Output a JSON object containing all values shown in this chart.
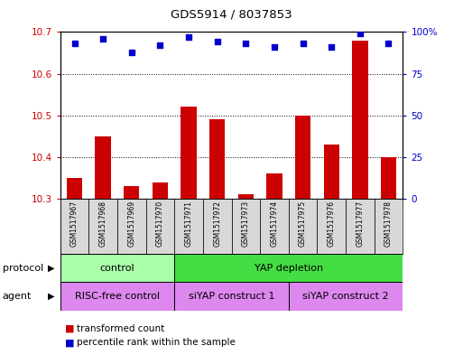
{
  "title": "GDS5914 / 8037853",
  "samples": [
    "GSM1517967",
    "GSM1517968",
    "GSM1517969",
    "GSM1517970",
    "GSM1517971",
    "GSM1517972",
    "GSM1517973",
    "GSM1517974",
    "GSM1517975",
    "GSM1517976",
    "GSM1517977",
    "GSM1517978"
  ],
  "bar_values": [
    10.35,
    10.45,
    10.33,
    10.34,
    10.52,
    10.49,
    10.31,
    10.36,
    10.5,
    10.43,
    10.68,
    10.4
  ],
  "percentile_values": [
    93,
    96,
    88,
    92,
    97,
    94,
    93,
    91,
    93,
    91,
    99,
    93
  ],
  "bar_color": "#cc0000",
  "dot_color": "#0000cc",
  "ylim_left": [
    10.3,
    10.7
  ],
  "ylim_right": [
    0,
    100
  ],
  "yticks_left": [
    10.3,
    10.4,
    10.5,
    10.6,
    10.7
  ],
  "yticks_right": [
    0,
    25,
    50,
    75,
    100
  ],
  "ytick_labels_right": [
    "0",
    "25",
    "50",
    "75",
    "100%"
  ],
  "bar_bottom": 10.3,
  "protocol_labels": [
    "control",
    "YAP depletion"
  ],
  "protocol_ranges": [
    [
      0,
      4
    ],
    [
      4,
      12
    ]
  ],
  "protocol_colors": [
    "#aaffaa",
    "#44dd44"
  ],
  "agent_labels": [
    "RISC-free control",
    "siYAP construct 1",
    "siYAP construct 2"
  ],
  "agent_ranges": [
    [
      0,
      4
    ],
    [
      4,
      8
    ],
    [
      8,
      12
    ]
  ],
  "agent_color": "#dd88ee",
  "legend_red_label": "transformed count",
  "legend_blue_label": "percentile rank within the sample",
  "background_color": "#ffffff",
  "n_samples": 12
}
